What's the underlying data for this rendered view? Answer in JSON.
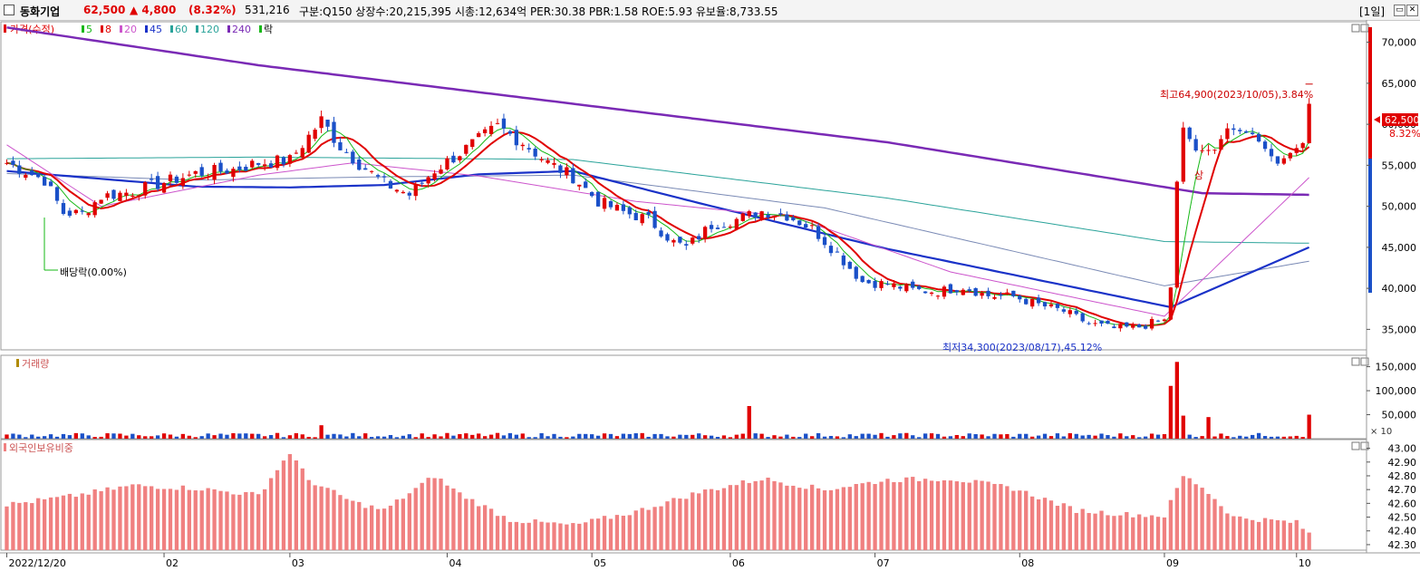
{
  "header": {
    "name": "동화기업",
    "price": "62,500",
    "change": "▲ 4,800",
    "change_pct": "(8.32%)",
    "volume": "531,216",
    "info": "구분:Q150 상장수:20,215,395 시총:12,634억 PER:30.38 PBR:1.58 ROE:5.93 유보율:8,733.55",
    "period": "[1일]"
  },
  "legend": {
    "price": "가격(수정)",
    "ma": [
      {
        "label": "5",
        "color": "#16b816"
      },
      {
        "label": "8",
        "color": "#e00000"
      },
      {
        "label": "20",
        "color": "#cc55cc"
      },
      {
        "label": "45",
        "color": "#1a32c8"
      },
      {
        "label": "60",
        "color": "#2aa39a"
      },
      {
        "label": "120",
        "color": "#2aa39a"
      },
      {
        "label": "240",
        "color": "#7a2ab5"
      }
    ],
    "drop": "락"
  },
  "panels": {
    "volume_title": "거래량",
    "foreign_title": "외국인보유비중"
  },
  "annotations": {
    "high": "최고64,900(2023/10/05),3.84%",
    "low": "최저34,300(2023/08/17),45.12%",
    "dividend": "배당락(0.00%)",
    "limit_up": "상",
    "current_price": "62,500",
    "current_pct": "8.32%",
    "volume_unit": "× 10"
  },
  "chart_data": {
    "type": "candlestick",
    "price_ticks": [
      "35,000",
      "40,000",
      "45,000",
      "50,000",
      "55,000",
      "60,000",
      "65,000",
      "70,000"
    ],
    "price_tick_values": [
      35000,
      40000,
      45000,
      50000,
      55000,
      60000,
      65000,
      70000
    ],
    "price_range": [
      32500,
      72500
    ],
    "volume_ticks": [
      "50,000",
      "100,000",
      "150,000"
    ],
    "volume_tick_values": [
      50000,
      100000,
      150000
    ],
    "volume_range": [
      0,
      170000
    ],
    "foreign_ticks": [
      "42.30",
      "42.40",
      "42.50",
      "42.60",
      "42.70",
      "42.80",
      "42.90",
      "43.00"
    ],
    "foreign_tick_values": [
      42.3,
      42.4,
      42.5,
      42.6,
      42.7,
      42.8,
      42.9,
      43.0
    ],
    "foreign_range": [
      42.26,
      43.05
    ],
    "x_labels": [
      "2022/12/20",
      "02",
      "03",
      "04",
      "05",
      "06",
      "07",
      "08",
      "09",
      "10"
    ],
    "x_label_days": [
      0,
      25,
      45,
      70,
      93,
      115,
      138,
      161,
      184,
      205
    ],
    "days": 210,
    "close_anchors": [
      [
        0,
        55300
      ],
      [
        6,
        53200
      ],
      [
        9,
        49200
      ],
      [
        12,
        49100
      ],
      [
        15,
        51200
      ],
      [
        20,
        51800
      ],
      [
        24,
        52700
      ],
      [
        30,
        54000
      ],
      [
        36,
        54500
      ],
      [
        40,
        55300
      ],
      [
        45,
        55600
      ],
      [
        50,
        60500
      ],
      [
        53,
        57300
      ],
      [
        56,
        55200
      ],
      [
        60,
        52800
      ],
      [
        64,
        51400
      ],
      [
        68,
        54400
      ],
      [
        72,
        56500
      ],
      [
        78,
        59700
      ],
      [
        82,
        57800
      ],
      [
        86,
        55300
      ],
      [
        90,
        53600
      ],
      [
        94,
        50600
      ],
      [
        98,
        49300
      ],
      [
        102,
        48400
      ],
      [
        106,
        45600
      ],
      [
        108,
        45000
      ],
      [
        112,
        47700
      ],
      [
        116,
        48400
      ],
      [
        120,
        49400
      ],
      [
        124,
        48900
      ],
      [
        128,
        47300
      ],
      [
        132,
        44200
      ],
      [
        136,
        40800
      ],
      [
        140,
        40500
      ],
      [
        144,
        39800
      ],
      [
        148,
        39600
      ],
      [
        152,
        40200
      ],
      [
        156,
        39100
      ],
      [
        160,
        39000
      ],
      [
        164,
        38000
      ],
      [
        168,
        37200
      ],
      [
        172,
        35700
      ],
      [
        176,
        35100
      ],
      [
        180,
        35300
      ],
      [
        184,
        36200
      ],
      [
        185,
        40100
      ],
      [
        186,
        53000
      ],
      [
        187,
        59600
      ],
      [
        189,
        56800
      ],
      [
        192,
        56900
      ],
      [
        194,
        59500
      ],
      [
        198,
        58800
      ],
      [
        202,
        55200
      ],
      [
        204,
        56500
      ],
      [
        206,
        57700
      ],
      [
        207,
        62500
      ]
    ],
    "high": {
      "value": 64900,
      "date": "2023/10/05"
    },
    "low": {
      "value": 34300,
      "date": "2023/08/17"
    },
    "last": {
      "close": 62500,
      "change": 4800,
      "pct": 8.32
    },
    "ma240_anchors": [
      [
        0,
        71800
      ],
      [
        40,
        67200
      ],
      [
        90,
        62500
      ],
      [
        140,
        57800
      ],
      [
        190,
        51600
      ],
      [
        207,
        51400
      ]
    ],
    "ma120_anchors": [
      [
        0,
        55800
      ],
      [
        40,
        56000
      ],
      [
        90,
        55700
      ],
      [
        140,
        51000
      ],
      [
        184,
        45700
      ],
      [
        207,
        45500
      ]
    ],
    "ma60_anchors": [
      [
        0,
        54000
      ],
      [
        30,
        53200
      ],
      [
        60,
        53600
      ],
      [
        90,
        53800
      ],
      [
        130,
        49800
      ],
      [
        184,
        40300
      ],
      [
        207,
        43300
      ]
    ],
    "ma45_anchors": [
      [
        0,
        54300
      ],
      [
        30,
        52400
      ],
      [
        45,
        52300
      ],
      [
        60,
        52600
      ],
      [
        75,
        53900
      ],
      [
        90,
        54300
      ],
      [
        110,
        50400
      ],
      [
        140,
        44800
      ],
      [
        185,
        37700
      ],
      [
        207,
        45000
      ]
    ],
    "ma20_anchors": [
      [
        0,
        57500
      ],
      [
        15,
        50000
      ],
      [
        40,
        53800
      ],
      [
        55,
        55300
      ],
      [
        75,
        53700
      ],
      [
        100,
        50600
      ],
      [
        125,
        48700
      ],
      [
        150,
        42000
      ],
      [
        184,
        36600
      ],
      [
        207,
        53500
      ]
    ],
    "volume_notes": {
      "unit_multiplier": 10,
      "spikes": [
        [
          50,
          28000
        ],
        [
          118,
          68000
        ],
        [
          185,
          110000
        ],
        [
          186,
          160000
        ],
        [
          187,
          48000
        ],
        [
          191,
          45000
        ],
        [
          207,
          50000
        ]
      ]
    },
    "foreign_anchors": [
      [
        0,
        42.59
      ],
      [
        10,
        42.65
      ],
      [
        20,
        42.73
      ],
      [
        30,
        42.71
      ],
      [
        40,
        42.66
      ],
      [
        45,
        42.97
      ],
      [
        48,
        42.77
      ],
      [
        55,
        42.61
      ],
      [
        60,
        42.55
      ],
      [
        68,
        42.8
      ],
      [
        72,
        42.67
      ],
      [
        80,
        42.48
      ],
      [
        90,
        42.44
      ],
      [
        100,
        42.54
      ],
      [
        110,
        42.68
      ],
      [
        120,
        42.78
      ],
      [
        130,
        42.7
      ],
      [
        140,
        42.77
      ],
      [
        150,
        42.78
      ],
      [
        160,
        42.71
      ],
      [
        170,
        42.55
      ],
      [
        178,
        42.52
      ],
      [
        184,
        42.51
      ],
      [
        187,
        42.8
      ],
      [
        190,
        42.72
      ],
      [
        195,
        42.5
      ],
      [
        205,
        42.46
      ],
      [
        207,
        42.38
      ]
    ]
  }
}
